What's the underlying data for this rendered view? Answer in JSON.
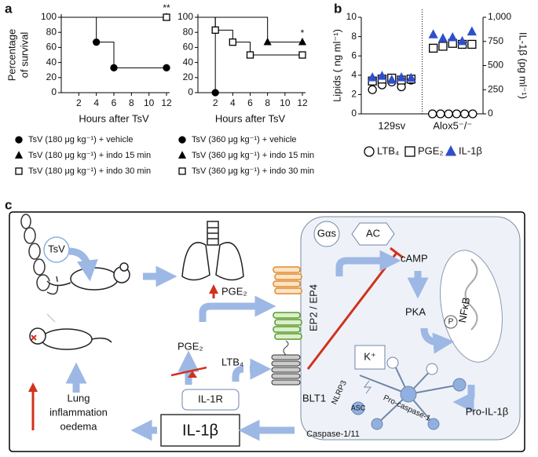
{
  "panel_labels": [
    "a",
    "b",
    "c"
  ],
  "chart_data": [
    {
      "type": "step",
      "ylabel": [
        "Percentage",
        "of survival"
      ],
      "xlabel": "Hours after TsV",
      "xlim": [
        0,
        12
      ],
      "xticks": [
        2,
        4,
        6,
        8,
        10,
        12
      ],
      "ylim": [
        0,
        100
      ],
      "yticks": [
        0,
        20,
        40,
        60,
        80,
        100
      ],
      "series": [
        {
          "name": "TsV (180 μg kg⁻¹) + vehicle",
          "color": "#000000",
          "marker": "circle",
          "filled": true,
          "x": [
            0,
            4,
            6,
            12
          ],
          "values": [
            100,
            67,
            33,
            33
          ]
        },
        {
          "name": "TsV (180 μg kg⁻¹) + indo 15 min",
          "color": "#000000",
          "marker": "triangle",
          "filled": true,
          "x": [
            0,
            12
          ],
          "values": [
            100,
            100
          ]
        },
        {
          "name": "TsV (180 μg kg⁻¹) + indo 30 min",
          "color": "#000000",
          "marker": "square",
          "filled": false,
          "x": [
            0,
            12
          ],
          "values": [
            100,
            100
          ]
        }
      ],
      "annotations": [
        {
          "text": "**",
          "x": 12,
          "y": 100
        }
      ]
    },
    {
      "type": "step",
      "xlabel": "Hours after TsV",
      "xlim": [
        0,
        12
      ],
      "xticks": [
        2,
        4,
        6,
        8,
        10,
        12
      ],
      "ylim": [
        0,
        100
      ],
      "yticks": [
        0,
        20,
        40,
        60,
        80,
        100
      ],
      "series": [
        {
          "name": "TsV (360 μg kg⁻¹) + vehicle",
          "color": "#000000",
          "marker": "circle",
          "filled": true,
          "x": [
            0,
            2
          ],
          "values": [
            100,
            0
          ]
        },
        {
          "name": "TsV (360 μg kg⁻¹) + indo 15 min",
          "color": "#000000",
          "marker": "triangle",
          "filled": true,
          "x": [
            0,
            8,
            12
          ],
          "values": [
            100,
            67,
            67
          ]
        },
        {
          "name": "TsV (360 μg kg⁻¹) + indo 30 min",
          "color": "#000000",
          "marker": "square",
          "filled": false,
          "x": [
            0,
            2,
            4,
            6,
            12
          ],
          "values": [
            100,
            83,
            67,
            50,
            50
          ]
        }
      ],
      "annotations": [
        {
          "text": "*",
          "x": 12,
          "y": 67
        }
      ]
    },
    {
      "type": "scatter",
      "ylabel": "Lipids ( ng ml⁻¹)",
      "y2label": "IL-1β (pg ml⁻¹)",
      "categories": [
        "129sv",
        "Alox5⁻/⁻"
      ],
      "ylim": [
        0,
        10
      ],
      "yticks": [
        0,
        2,
        4,
        6,
        8,
        10
      ],
      "y2lim": [
        0,
        1000
      ],
      "y2ticks": [
        0,
        250,
        500,
        750,
        {
          "value": 1000,
          "label": "1,000"
        }
      ],
      "series": [
        {
          "name": "LTB₄",
          "color": "#000000",
          "marker": "circle",
          "filled": false,
          "values": [
            [
              2.5,
              3.0,
              3.3,
              2.8,
              3.5
            ],
            [
              0,
              0,
              0,
              0,
              0,
              0
            ]
          ]
        },
        {
          "name": "PGE₂",
          "color": "#000000",
          "marker": "square",
          "filled": false,
          "values": [
            [
              3.4,
              3.6,
              3.7,
              3.5,
              3.6
            ],
            [
              6.8,
              7.0,
              7.3,
              7.2,
              7.2
            ]
          ]
        },
        {
          "name": "IL-1β",
          "color": "#2e4fcc",
          "marker": "triangle",
          "filled": true,
          "axis": "y2",
          "values": [
            [
              375,
              390,
              350,
              375,
              370
            ],
            [
              820,
              780,
              790,
              750,
              850
            ]
          ]
        }
      ]
    }
  ],
  "diagram": {
    "tsv": "TsV",
    "pge2_top": "PGE₂",
    "pge2_left": "PGE₂",
    "ltb4": "LTB₄",
    "ep": "EP2 / EP4",
    "blt1": "BLT1",
    "gas": "Gαs",
    "ac": "AC",
    "camp": "cAMP",
    "pka": "PKA",
    "p": "P",
    "nfkb": "NFκB",
    "k": "K⁺",
    "nlrp3": "NLRP3",
    "asc": "ASC",
    "procasp": "Pro-caspase-1",
    "casp": "Caspase-1/11",
    "proil": "Pro-IL-1β",
    "il1r": "IL-1R",
    "il1b": "IL-1β",
    "outcome": [
      "Lung",
      "inflammation",
      "oedema"
    ]
  }
}
